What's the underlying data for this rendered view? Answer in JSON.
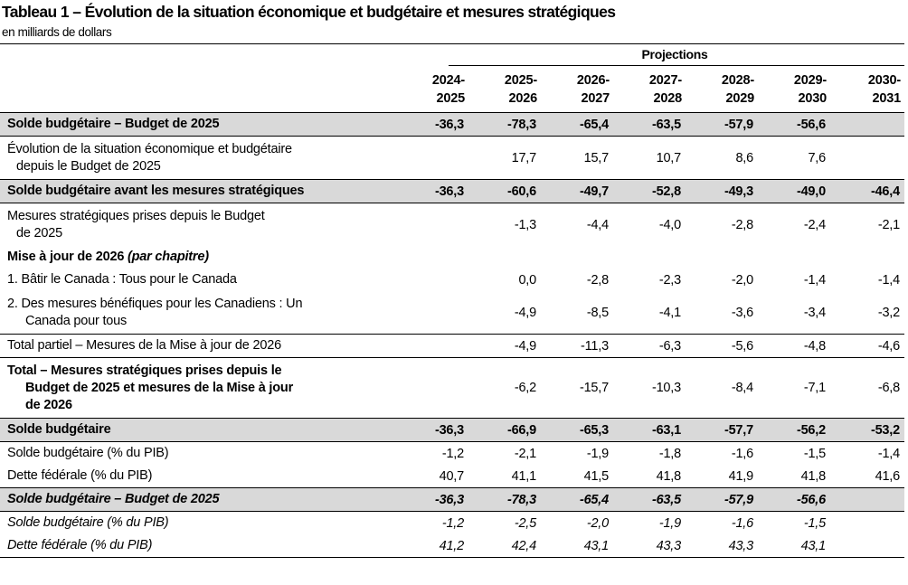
{
  "title": "Tableau 1 – Évolution de la situation économique et budgétaire et mesures stratégiques",
  "subtitle": "en milliards de dollars",
  "projections_label": "Projections",
  "year_headers": [
    [
      "2024-",
      "2025"
    ],
    [
      "2025-",
      "2026"
    ],
    [
      "2026-",
      "2027"
    ],
    [
      "2027-",
      "2028"
    ],
    [
      "2028-",
      "2029"
    ],
    [
      "2029-",
      "2030"
    ],
    [
      "2030-",
      "2031"
    ]
  ],
  "rows": [
    {
      "label": [
        "Solde budgétaire – Budget de 2025"
      ],
      "values": [
        "-36,3",
        "-78,3",
        "-65,4",
        "-63,5",
        "-57,9",
        "-56,6",
        ""
      ]
    },
    {
      "label": [
        "Évolution de la situation économique et budgétaire",
        "depuis le Budget de 2025"
      ],
      "values": [
        "",
        "17,7",
        "15,7",
        "10,7",
        "8,6",
        "7,6",
        ""
      ]
    },
    {
      "label": [
        "Solde budgétaire avant les mesures stratégiques"
      ],
      "values": [
        "-36,3",
        "-60,6",
        "-49,7",
        "-52,8",
        "-49,3",
        "-49,0",
        "-46,4"
      ]
    },
    {
      "label": [
        "Mesures stratégiques prises depuis le Budget",
        "de 2025"
      ],
      "values": [
        "",
        "-1,3",
        "-4,4",
        "-4,0",
        "-2,8",
        "-2,4",
        "-2,1"
      ]
    },
    {
      "label_main": "Mise à jour de 2026 ",
      "label_em": "(par chapitre)"
    },
    {
      "label": [
        "1. Bâtir le Canada : Tous pour le Canada"
      ],
      "values": [
        "",
        "0,0",
        "-2,8",
        "-2,3",
        "-2,0",
        "-1,4",
        "-1,4"
      ]
    },
    {
      "label": [
        "2. Des mesures bénéfiques pour les Canadiens : Un",
        "Canada pour tous"
      ],
      "values": [
        "",
        "-4,9",
        "-8,5",
        "-4,1",
        "-3,6",
        "-3,4",
        "-3,2"
      ]
    },
    {
      "label": [
        "Total partiel – Mesures de la Mise à jour de 2026"
      ],
      "values": [
        "",
        "-4,9",
        "-11,3",
        "-6,3",
        "-5,6",
        "-4,8",
        "-4,6"
      ]
    },
    {
      "label": [
        "Total – Mesures stratégiques prises depuis le",
        "Budget de 2025 et mesures de la Mise à jour",
        "de 2026"
      ],
      "values": [
        "",
        "-6,2",
        "-15,7",
        "-10,3",
        "-8,4",
        "-7,1",
        "-6,8"
      ]
    },
    {
      "label": [
        "Solde budgétaire"
      ],
      "values": [
        "-36,3",
        "-66,9",
        "-65,3",
        "-63,1",
        "-57,7",
        "-56,2",
        "-53,2"
      ]
    },
    {
      "label": [
        "Solde budgétaire (% du PIB)"
      ],
      "values": [
        "-1,2",
        "-2,1",
        "-1,9",
        "-1,8",
        "-1,6",
        "-1,5",
        "-1,4"
      ]
    },
    {
      "label": [
        "Dette fédérale (% du PIB)"
      ],
      "values": [
        "40,7",
        "41,1",
        "41,5",
        "41,8",
        "41,9",
        "41,8",
        "41,6"
      ]
    },
    {
      "label": [
        "Solde budgétaire – Budget de 2025"
      ],
      "values": [
        "-36,3",
        "-78,3",
        "-65,4",
        "-63,5",
        "-57,9",
        "-56,6",
        ""
      ]
    },
    {
      "label": [
        "Solde budgétaire (% du PIB)"
      ],
      "values": [
        "-1,2",
        "-2,5",
        "-2,0",
        "-1,9",
        "-1,6",
        "-1,5",
        ""
      ]
    },
    {
      "label": [
        "Dette fédérale (% du PIB)"
      ],
      "values": [
        "41,2",
        "42,4",
        "43,1",
        "43,3",
        "43,3",
        "43,1",
        ""
      ]
    }
  ]
}
